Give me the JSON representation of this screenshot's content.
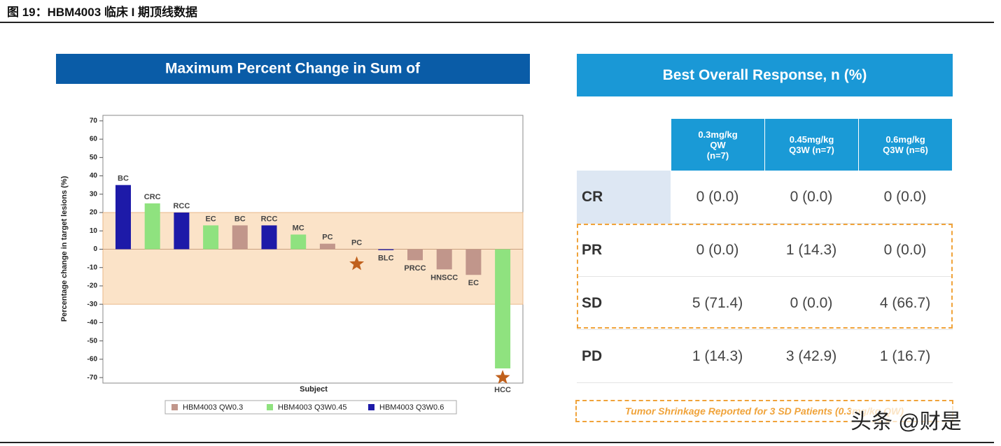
{
  "header": {
    "title": "图 19：HBM4003 临床 I 期顶线数据"
  },
  "chart_data": {
    "type": "bar",
    "title": "Maximum Percent Change in Sum of",
    "x_label": "Subject",
    "y_label": "Percentage change in target lesions (%)",
    "categories": [
      "BC",
      "CRC",
      "RCC",
      "EC",
      "BC",
      "RCC",
      "MC",
      "PC",
      "PC",
      "BLC",
      "PRCC",
      "HNSCC",
      "EC",
      "HCC"
    ],
    "series": [
      {
        "name": "HBM4003 QW0.3",
        "color": "#c1968b",
        "values": [
          null,
          null,
          null,
          null,
          13,
          null,
          null,
          3,
          0,
          null,
          -6,
          -11,
          -14,
          null
        ]
      },
      {
        "name": "HBM4003 Q3W0.45",
        "color": "#8fe27f",
        "values": [
          null,
          25,
          null,
          13,
          null,
          null,
          8,
          null,
          null,
          null,
          null,
          null,
          null,
          -65
        ]
      },
      {
        "name": "HBM4003 Q3W0.6",
        "color": "#1d1aa8",
        "values": [
          35,
          null,
          20,
          null,
          null,
          13,
          null,
          null,
          null,
          -0.5,
          null,
          null,
          null,
          null
        ]
      }
    ],
    "star_markers": {
      "color": "#c0601c",
      "values": [
        null,
        null,
        null,
        null,
        null,
        null,
        null,
        null,
        -8,
        null,
        null,
        null,
        null,
        -70
      ]
    },
    "shaded_band": {
      "color": "#fbe3c8",
      "range": [
        -30,
        20
      ]
    },
    "ylim": [
      -73,
      73
    ],
    "yticks": [
      70,
      60,
      50,
      40,
      30,
      20,
      10,
      0,
      -10,
      -20,
      -30,
      -40,
      -50,
      -60,
      -70
    ],
    "legend": "bottom"
  },
  "table": {
    "title": "Best Overall Response, n (%)",
    "columns": [
      "0.3mg/kg QW (n=7)",
      "0.45mg/kg Q3W (n=7)",
      "0.6mg/kg Q3W (n=6)"
    ],
    "rows": [
      [
        "CR",
        "0 (0.0)",
        "0 (0.0)",
        "0 (0.0)"
      ],
      [
        "PR",
        "0 (0.0)",
        "1 (14.3)",
        "0 (0.0)"
      ],
      [
        "SD",
        "5 (71.4)",
        "0 (0.0)",
        "4 (66.7)"
      ],
      [
        "PD",
        "1 (14.3)",
        "3 (42.9)",
        "1 (16.7)"
      ]
    ],
    "note": "Tumor Shrinkage Reported for 3 SD Patients (0.3mg/kg QW)"
  },
  "watermark": "头条 @财是"
}
